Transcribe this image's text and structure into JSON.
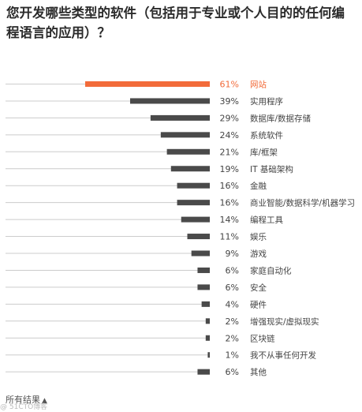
{
  "title": "您开发哪些类型的软件（包括用于专业或个人目的的任何编程语言的应用）？",
  "chart_data": {
    "type": "bar",
    "orientation": "horizontal",
    "categories": [
      "网站",
      "实用程序",
      "数据库/数据存储",
      "系统软件",
      "库/框架",
      "IT 基础架构",
      "金融",
      "商业智能/数据科学/机器学习",
      "编程工具",
      "娱乐",
      "游戏",
      "家庭自动化",
      "安全",
      "硬件",
      "增强现实/虚拟现实",
      "区块链",
      "我不从事任何开发",
      "其他"
    ],
    "values": [
      61,
      39,
      29,
      24,
      21,
      19,
      16,
      16,
      14,
      11,
      9,
      6,
      6,
      4,
      2,
      2,
      1,
      6
    ],
    "value_labels": [
      "61%",
      "39%",
      "29%",
      "24%",
      "21%",
      "19%",
      "16%",
      "16%",
      "14%",
      "11%",
      "9%",
      "6%",
      "6%",
      "4%",
      "2%",
      "2%",
      "1%",
      "6%"
    ],
    "highlight_index": 0,
    "xlim": [
      0,
      61
    ],
    "colors": {
      "highlight": "#f26b3a",
      "default": "#4a4a4a",
      "baseline": "#cccccc",
      "highlight_text": "#f26b3a"
    }
  },
  "footer": {
    "label": "所有结果"
  },
  "watermark": "@ 51CTO博客"
}
